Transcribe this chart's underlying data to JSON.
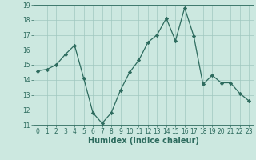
{
  "x": [
    0,
    1,
    2,
    3,
    4,
    5,
    6,
    7,
    8,
    9,
    10,
    11,
    12,
    13,
    14,
    15,
    16,
    17,
    18,
    19,
    20,
    21,
    22,
    23
  ],
  "y": [
    14.6,
    14.7,
    15.0,
    15.7,
    16.3,
    14.1,
    11.8,
    11.1,
    11.8,
    13.3,
    14.5,
    15.3,
    16.5,
    17.0,
    18.1,
    16.6,
    18.8,
    16.9,
    13.7,
    14.3,
    13.8,
    13.8,
    13.1,
    12.6
  ],
  "xlabel": "Humidex (Indice chaleur)",
  "ylim": [
    11,
    19
  ],
  "xlim": [
    -0.5,
    23.5
  ],
  "yticks": [
    11,
    12,
    13,
    14,
    15,
    16,
    17,
    18,
    19
  ],
  "xticks": [
    0,
    1,
    2,
    3,
    4,
    5,
    6,
    7,
    8,
    9,
    10,
    11,
    12,
    13,
    14,
    15,
    16,
    17,
    18,
    19,
    20,
    21,
    22,
    23
  ],
  "line_color": "#2d6b5e",
  "marker": "D",
  "marker_size": 2.2,
  "bg_color": "#cce8e0",
  "grid_color": "#a0c8c0",
  "tick_color": "#2d6b5e",
  "xlabel_color": "#2d6b5e",
  "tick_fontsize": 5.5,
  "xlabel_fontsize": 7.0
}
